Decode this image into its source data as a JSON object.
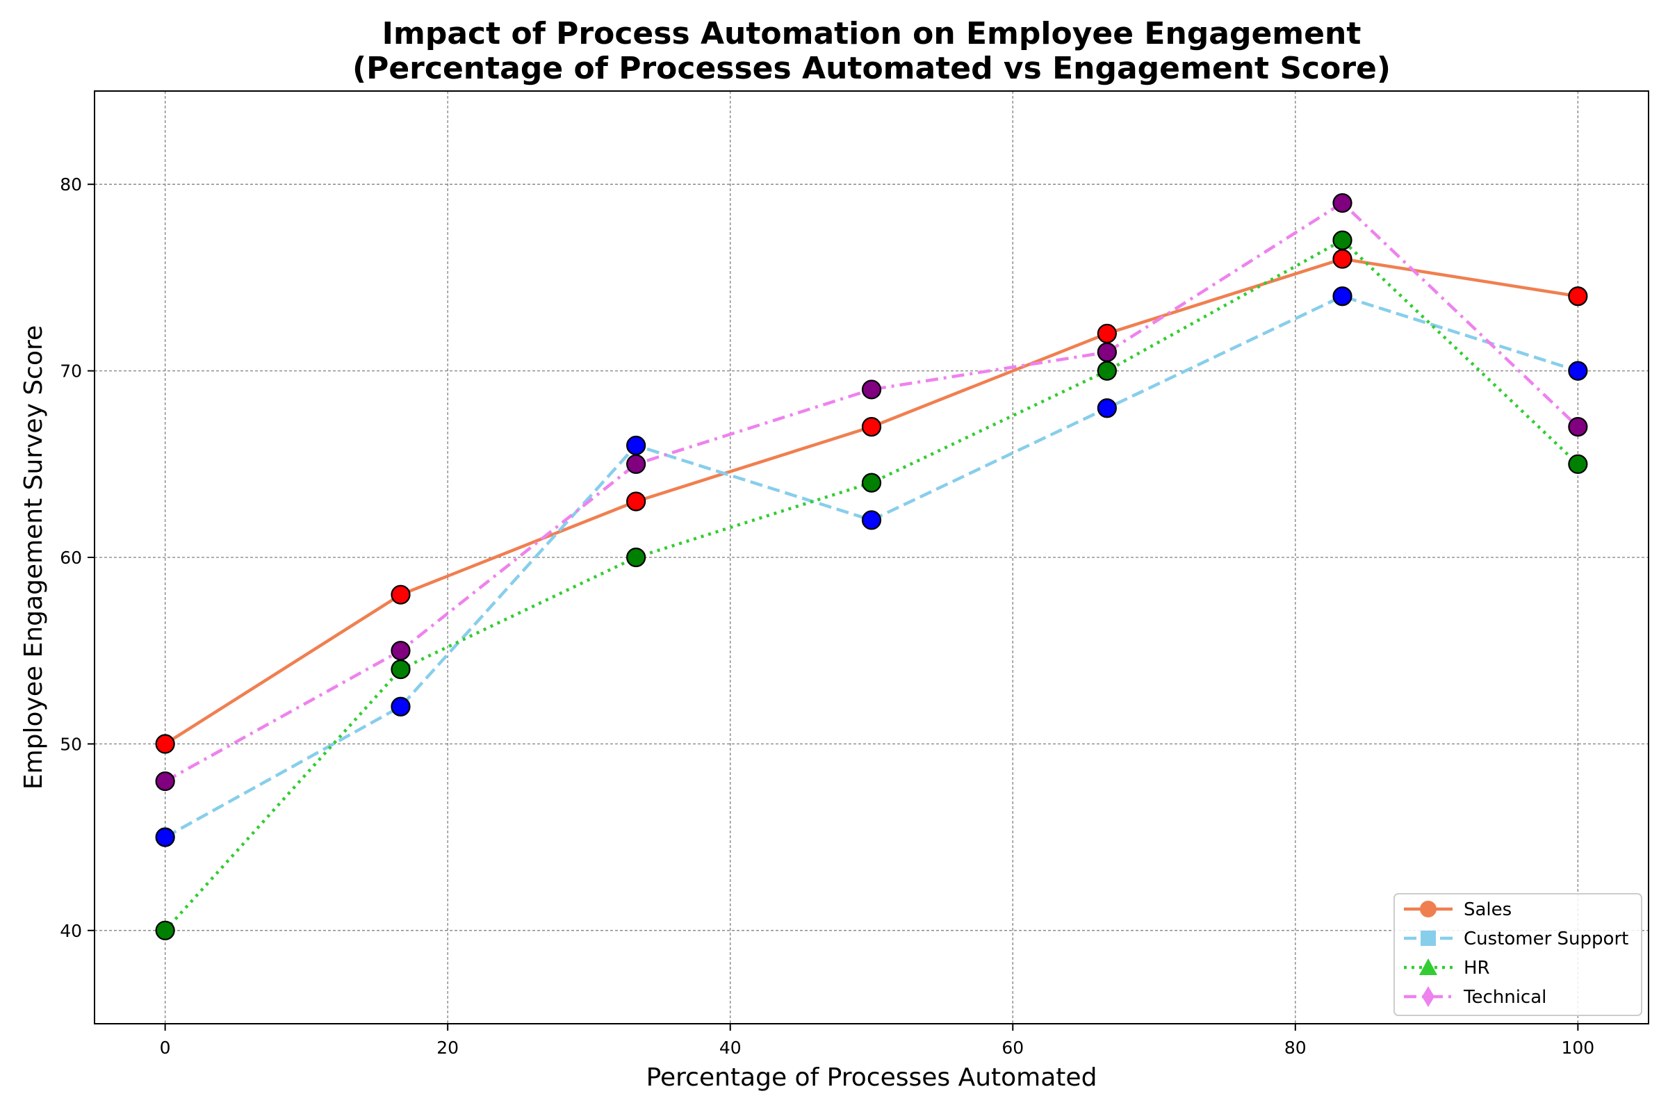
{
  "chart_data": {
    "type": "line",
    "title": "Impact of Process Automation on Employee Engagement",
    "subtitle": "(Percentage of Processes Automated vs Engagement Score)",
    "xlabel": "Percentage of Processes Automated",
    "ylabel": "Employee Engagement Survey Score",
    "xlim": [
      -5,
      105
    ],
    "ylim": [
      35,
      85
    ],
    "xticks": [
      0,
      20,
      40,
      60,
      80,
      100
    ],
    "yticks": [
      40,
      50,
      60,
      70,
      80
    ],
    "grid": true,
    "legend_position": "bottom-right",
    "x": [
      0,
      16.67,
      33.33,
      50,
      66.67,
      83.33,
      100
    ],
    "series": [
      {
        "name": "Sales",
        "values": [
          50,
          58,
          63,
          67,
          72,
          76,
          74
        ],
        "line_color": "#f07f50",
        "marker_color": "#ff0000",
        "line_style": "solid",
        "legend_marker": "circle"
      },
      {
        "name": "Customer Support",
        "values": [
          45,
          52,
          66,
          62,
          68,
          74,
          70
        ],
        "line_color": "#87ceeb",
        "marker_color": "#0000ff",
        "line_style": "dashed",
        "legend_marker": "square"
      },
      {
        "name": "HR",
        "values": [
          40,
          54,
          60,
          64,
          70,
          77,
          65
        ],
        "line_color": "#32cd32",
        "marker_color": "#008000",
        "line_style": "dotted",
        "legend_marker": "triangle"
      },
      {
        "name": "Technical",
        "values": [
          48,
          55,
          65,
          69,
          71,
          79,
          67
        ],
        "line_color": "#ee82ee",
        "marker_color": "#800080",
        "line_style": "dashdot",
        "legend_marker": "diamond"
      }
    ]
  }
}
